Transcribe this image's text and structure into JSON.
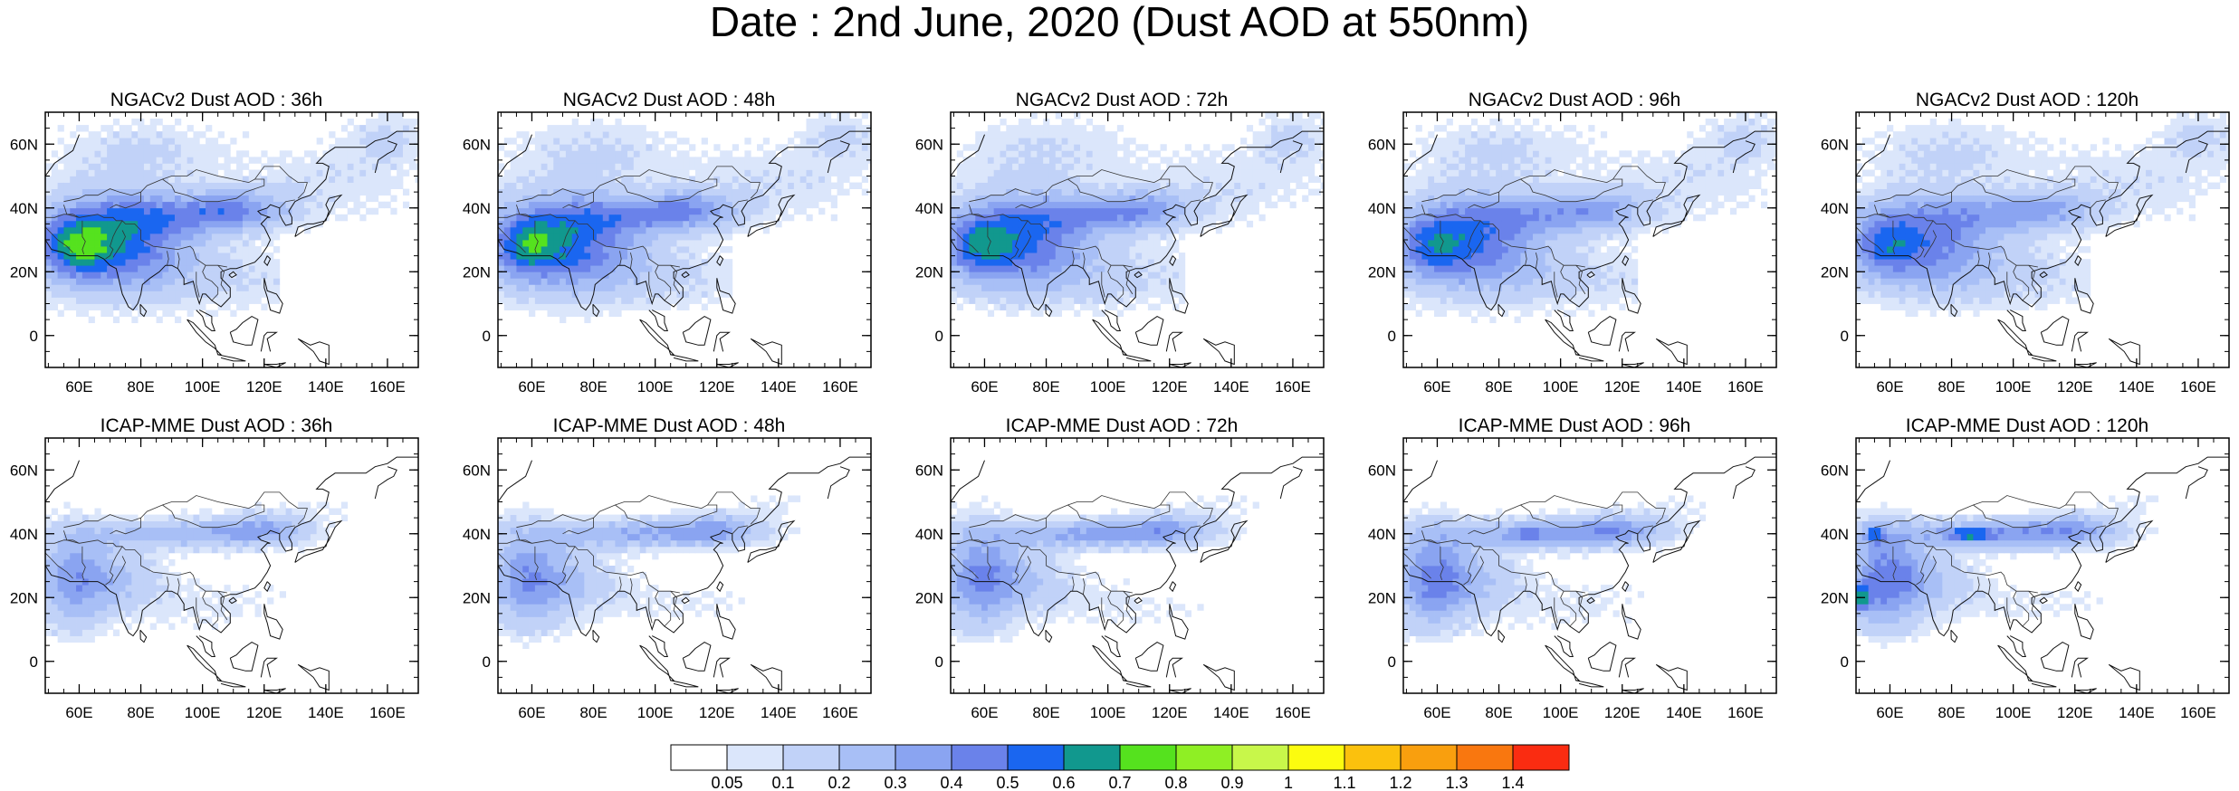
{
  "title": "Date : 2nd June, 2020 (Dust AOD at 550nm)",
  "chart_data": {
    "type": "heatmap",
    "title": "Date : 2nd June, 2020 (Dust AOD at 550nm)",
    "xlim": [
      49,
      170
    ],
    "ylim": [
      -10,
      70
    ],
    "x_ticks": [
      60,
      80,
      100,
      120,
      140,
      160
    ],
    "x_tick_labels": [
      "60E",
      "80E",
      "100E",
      "120E",
      "140E",
      "160E"
    ],
    "y_ticks": [
      0,
      20,
      40,
      60
    ],
    "y_tick_labels": [
      "0",
      "20N",
      "40N",
      "60N"
    ],
    "panels": [
      {
        "title": "NGACv2 Dust AOD : 36h",
        "model": "NGACv2",
        "lead_hours": 36
      },
      {
        "title": "NGACv2 Dust AOD : 48h",
        "model": "NGACv2",
        "lead_hours": 48
      },
      {
        "title": "NGACv2 Dust AOD : 72h",
        "model": "NGACv2",
        "lead_hours": 72
      },
      {
        "title": "NGACv2 Dust AOD : 96h",
        "model": "NGACv2",
        "lead_hours": 96
      },
      {
        "title": "NGACv2 Dust AOD : 120h",
        "model": "NGACv2",
        "lead_hours": 120
      },
      {
        "title": "ICAP-MME Dust AOD : 36h",
        "model": "ICAP-MME",
        "lead_hours": 36
      },
      {
        "title": "ICAP-MME Dust AOD : 48h",
        "model": "ICAP-MME",
        "lead_hours": 48
      },
      {
        "title": "ICAP-MME Dust AOD : 72h",
        "model": "ICAP-MME",
        "lead_hours": 72
      },
      {
        "title": "ICAP-MME Dust AOD : 96h",
        "model": "ICAP-MME",
        "lead_hours": 96
      },
      {
        "title": "ICAP-MME Dust AOD : 120h",
        "model": "ICAP-MME",
        "lead_hours": 120
      }
    ],
    "colorbar": {
      "labels": [
        "0.05",
        "0.1",
        "0.2",
        "0.3",
        "0.4",
        "0.5",
        "0.6",
        "0.7",
        "0.8",
        "0.9",
        "1",
        "1.1",
        "1.2",
        "1.3",
        "1.4"
      ],
      "colors": [
        "#ffffff",
        "#dbe6fb",
        "#c1d2f8",
        "#a8bff6",
        "#8aa4f1",
        "#6a82ea",
        "#1a66f0",
        "#11988e",
        "#55e21e",
        "#8fef24",
        "#c8f74a",
        "#fcfc0f",
        "#fbc10d",
        "#f99f0e",
        "#f9770f",
        "#fa2c11"
      ]
    }
  }
}
